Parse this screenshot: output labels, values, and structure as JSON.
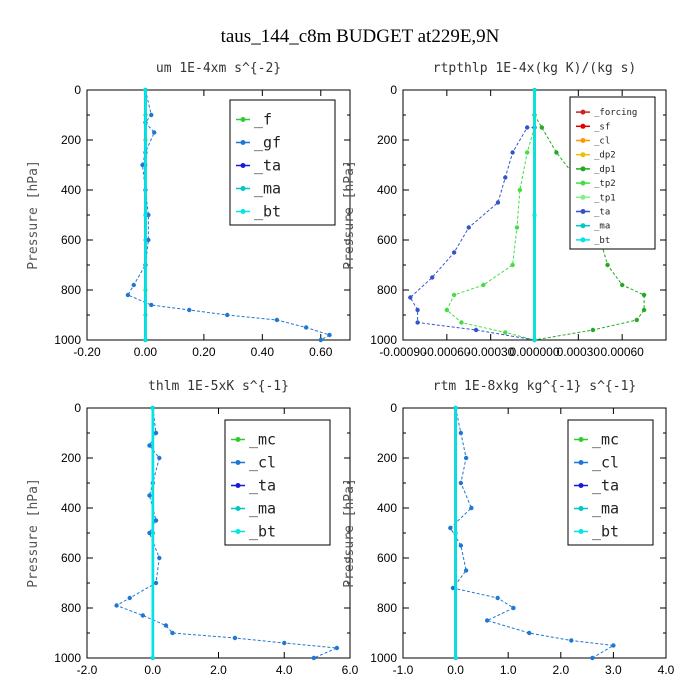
{
  "figure": {
    "title": "taus_144_c8m  BUDGET at229E,9N"
  },
  "chart_data": [
    {
      "type": "line",
      "title": "um   1E-4xm s^{-2}",
      "ylabel": "Pressure [hPa]",
      "xlim": [
        -0.2,
        0.7
      ],
      "ylim": [
        1000,
        0
      ],
      "xticks": [
        "-0.20",
        "0.00",
        "0.20",
        "0.40",
        "0.60"
      ],
      "xtick_values": [
        -0.2,
        0.0,
        0.2,
        0.4,
        0.6
      ],
      "yticks": [
        0,
        200,
        400,
        600,
        800,
        1000
      ],
      "legend_position": "top-right",
      "series": [
        {
          "name": "_f",
          "color": "#2ecc2e",
          "values": [
            [
              0,
              0
            ],
            [
              0,
              100
            ],
            [
              0,
              200
            ],
            [
              0,
              300
            ],
            [
              0,
              400
            ],
            [
              0,
              500
            ],
            [
              0,
              600
            ],
            [
              0,
              700
            ],
            [
              0,
              800
            ],
            [
              0,
              900
            ],
            [
              0,
              1000
            ]
          ]
        },
        {
          "name": "_gf",
          "color": "#1f77d4",
          "values": [
            [
              0.0,
              0
            ],
            [
              0.02,
              100
            ],
            [
              0.0,
              130
            ],
            [
              0.03,
              170
            ],
            [
              0.0,
              250
            ],
            [
              -0.01,
              300
            ],
            [
              0.0,
              400
            ],
            [
              0.01,
              500
            ],
            [
              0.01,
              600
            ],
            [
              0.0,
              700
            ],
            [
              -0.04,
              780
            ],
            [
              -0.06,
              820
            ],
            [
              0.02,
              860
            ],
            [
              0.15,
              880
            ],
            [
              0.28,
              900
            ],
            [
              0.45,
              920
            ],
            [
              0.55,
              950
            ],
            [
              0.63,
              980
            ],
            [
              0.6,
              1000
            ]
          ]
        },
        {
          "name": "_ta",
          "color": "#1a1adc",
          "values": [
            [
              0,
              0
            ],
            [
              0,
              500
            ],
            [
              0,
              1000
            ]
          ]
        },
        {
          "name": "_ma",
          "color": "#00c8c8",
          "values": [
            [
              0,
              0
            ],
            [
              0,
              500
            ],
            [
              0,
              1000
            ]
          ]
        },
        {
          "name": "_bt",
          "color": "#00e5e5",
          "values": [
            [
              0,
              0
            ],
            [
              0,
              500
            ],
            [
              0,
              1000
            ]
          ]
        }
      ]
    },
    {
      "type": "line",
      "title": "rtpthlp  1E-4x(kg K)/(kg s)",
      "ylabel": "Pressure [hPa]",
      "xlim": [
        -0.0009,
        0.0009
      ],
      "ylim": [
        1000,
        0
      ],
      "xticks": [
        "-0.00090",
        "-0.00060",
        "-0.00030",
        "0.000000",
        "0.00030",
        "0.00060"
      ],
      "xtick_values": [
        -0.0009,
        -0.0006,
        -0.0003,
        0.0,
        0.0003,
        0.0006
      ],
      "yticks": [
        0,
        200,
        400,
        600,
        800,
        1000
      ],
      "legend_position": "top-right",
      "series": [
        {
          "name": "_forcing",
          "color": "#cc2222",
          "values": [
            [
              0,
              0
            ],
            [
              0,
              500
            ],
            [
              0,
              1000
            ]
          ]
        },
        {
          "name": "_sf",
          "color": "#e00000",
          "values": [
            [
              0,
              0
            ],
            [
              0,
              500
            ],
            [
              0,
              1000
            ]
          ]
        },
        {
          "name": "_cl",
          "color": "#ff9900",
          "values": [
            [
              0,
              0
            ],
            [
              0,
              500
            ],
            [
              0,
              1000
            ]
          ]
        },
        {
          "name": "_dp2",
          "color": "#f0c000",
          "values": [
            [
              0,
              0
            ],
            [
              0,
              500
            ],
            [
              0,
              1000
            ]
          ]
        },
        {
          "name": "_dp1",
          "color": "#22aa22",
          "values": [
            [
              0.0,
              100
            ],
            [
              5e-05,
              150
            ],
            [
              0.00015,
              250
            ],
            [
              0.00035,
              400
            ],
            [
              0.00045,
              500
            ],
            [
              0.00045,
              600
            ],
            [
              0.0005,
              700
            ],
            [
              0.0006,
              780
            ],
            [
              0.00075,
              820
            ],
            [
              0.00075,
              880
            ],
            [
              0.0007,
              920
            ],
            [
              0.0004,
              960
            ],
            [
              0.0,
              1000
            ]
          ]
        },
        {
          "name": "_tp2",
          "color": "#44dd44",
          "values": [
            [
              0.0,
              150
            ],
            [
              -5e-05,
              250
            ],
            [
              -0.0001,
              400
            ],
            [
              -0.00012,
              550
            ],
            [
              -0.00015,
              700
            ],
            [
              -0.00035,
              780
            ],
            [
              -0.00055,
              820
            ],
            [
              -0.0006,
              880
            ],
            [
              -0.0005,
              930
            ],
            [
              -0.0002,
              970
            ],
            [
              0.0,
              1000
            ]
          ]
        },
        {
          "name": "_tp1",
          "color": "#88ee88",
          "values": [
            [
              0,
              0
            ],
            [
              0,
              500
            ],
            [
              0,
              1000
            ]
          ]
        },
        {
          "name": "_ta",
          "color": "#3355cc",
          "values": [
            [
              0.0,
              150
            ],
            [
              -5e-05,
              150
            ],
            [
              -0.00015,
              250
            ],
            [
              -0.0002,
              350
            ],
            [
              -0.00025,
              450
            ],
            [
              -0.00045,
              550
            ],
            [
              -0.00055,
              650
            ],
            [
              -0.0007,
              750
            ],
            [
              -0.00085,
              830
            ],
            [
              -0.0008,
              880
            ],
            [
              -0.0008,
              930
            ],
            [
              -0.0004,
              960
            ],
            [
              0.0,
              1000
            ]
          ]
        },
        {
          "name": "_ma",
          "color": "#00c8c8",
          "values": [
            [
              0,
              0
            ],
            [
              0,
              500
            ],
            [
              0,
              1000
            ]
          ]
        },
        {
          "name": "_bt",
          "color": "#00e5e5",
          "values": [
            [
              0,
              0
            ],
            [
              0,
              500
            ],
            [
              0,
              1000
            ]
          ]
        }
      ]
    },
    {
      "type": "line",
      "title": "thlm  1E-5xK s^{-1}",
      "ylabel": "Pressure [hPa]",
      "xlim": [
        -2.0,
        6.0
      ],
      "ylim": [
        1000,
        0
      ],
      "xticks": [
        "-2.0",
        "0.0",
        "2.0",
        "4.0",
        "6.0"
      ],
      "xtick_values": [
        -2.0,
        0.0,
        2.0,
        4.0,
        6.0
      ],
      "yticks": [
        0,
        200,
        400,
        600,
        800,
        1000
      ],
      "legend_position": "top-right",
      "series": [
        {
          "name": "_mc",
          "color": "#2ecc2e",
          "values": [
            [
              0,
              0
            ],
            [
              0,
              500
            ],
            [
              0,
              1000
            ]
          ]
        },
        {
          "name": "_cl",
          "color": "#1f77d4",
          "values": [
            [
              0.0,
              0
            ],
            [
              0.1,
              100
            ],
            [
              -0.1,
              150
            ],
            [
              0.2,
              200
            ],
            [
              0.0,
              300
            ],
            [
              -0.1,
              350
            ],
            [
              0.1,
              450
            ],
            [
              -0.1,
              500
            ],
            [
              0.2,
              600
            ],
            [
              0.1,
              700
            ],
            [
              -0.7,
              760
            ],
            [
              -1.1,
              790
            ],
            [
              -0.3,
              830
            ],
            [
              0.4,
              870
            ],
            [
              0.6,
              900
            ],
            [
              2.5,
              920
            ],
            [
              4.0,
              940
            ],
            [
              5.6,
              960
            ],
            [
              4.9,
              1000
            ]
          ]
        },
        {
          "name": "_ta",
          "color": "#1a1adc",
          "values": [
            [
              0,
              0
            ],
            [
              0,
              500
            ],
            [
              0,
              1000
            ]
          ]
        },
        {
          "name": "_ma",
          "color": "#00c8c8",
          "values": [
            [
              0,
              0
            ],
            [
              0,
              500
            ],
            [
              0,
              1000
            ]
          ]
        },
        {
          "name": "_bt",
          "color": "#00e5e5",
          "values": [
            [
              0,
              0
            ],
            [
              0,
              500
            ],
            [
              0,
              1000
            ]
          ]
        }
      ]
    },
    {
      "type": "line",
      "title": "rtm   1E-8xkg kg^{-1} s^{-1}",
      "ylabel": "Pressure [hPa]",
      "xlim": [
        -1.0,
        4.0
      ],
      "ylim": [
        1000,
        0
      ],
      "xticks": [
        "-1.0",
        "0.0",
        "1.0",
        "2.0",
        "3.0",
        "4.0"
      ],
      "xtick_values": [
        -1.0,
        0.0,
        1.0,
        2.0,
        3.0,
        4.0
      ],
      "yticks": [
        0,
        200,
        400,
        600,
        800,
        1000
      ],
      "legend_position": "top-right",
      "series": [
        {
          "name": "_mc",
          "color": "#2ecc2e",
          "values": [
            [
              0,
              0
            ],
            [
              0,
              500
            ],
            [
              0,
              1000
            ]
          ]
        },
        {
          "name": "_cl",
          "color": "#1f77d4",
          "values": [
            [
              0.0,
              0
            ],
            [
              0.1,
              100
            ],
            [
              0.2,
              200
            ],
            [
              0.1,
              300
            ],
            [
              0.3,
              400
            ],
            [
              -0.1,
              480
            ],
            [
              0.1,
              550
            ],
            [
              0.2,
              650
            ],
            [
              -0.05,
              720
            ],
            [
              0.8,
              760
            ],
            [
              1.1,
              800
            ],
            [
              0.6,
              850
            ],
            [
              1.4,
              900
            ],
            [
              2.2,
              930
            ],
            [
              3.0,
              950
            ],
            [
              2.6,
              1000
            ]
          ]
        },
        {
          "name": "_ta",
          "color": "#1a1adc",
          "values": [
            [
              0,
              0
            ],
            [
              0,
              500
            ],
            [
              0,
              1000
            ]
          ]
        },
        {
          "name": "_ma",
          "color": "#00c8c8",
          "values": [
            [
              0,
              0
            ],
            [
              0,
              500
            ],
            [
              0,
              1000
            ]
          ]
        },
        {
          "name": "_bt",
          "color": "#00e5e5",
          "values": [
            [
              0,
              0
            ],
            [
              0,
              500
            ],
            [
              0,
              1000
            ]
          ]
        }
      ]
    }
  ]
}
